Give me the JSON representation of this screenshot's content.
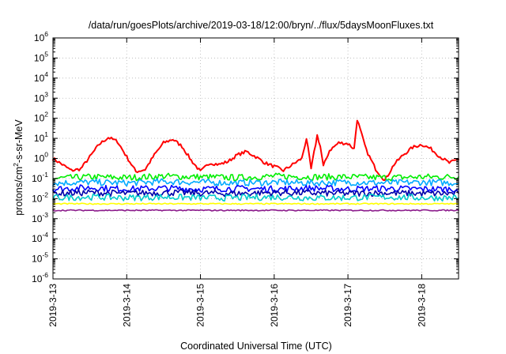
{
  "chart_data": {
    "type": "line",
    "title": "/data/run/goesPlots/archive/2019-03-18/12:00/bryn/../flux/5daysMoonFluxes.txt",
    "xlabel": "Coordinated Universal Time (UTC)",
    "ylabel": {
      "base": "protons/cm",
      "sup": "2",
      "rest": "-s-sr-MeV"
    },
    "y_scale": "log",
    "ylim": [
      1e-06,
      1000000.0
    ],
    "y_ticks": [
      {
        "base": "10",
        "exp": "-6",
        "value": 1e-06
      },
      {
        "base": "10",
        "exp": "-5",
        "value": 1e-05
      },
      {
        "base": "10",
        "exp": "-4",
        "value": 0.0001
      },
      {
        "base": "10",
        "exp": "-3",
        "value": 0.001
      },
      {
        "base": "10",
        "exp": "-2",
        "value": 0.01
      },
      {
        "base": "10",
        "exp": "-1",
        "value": 0.1
      },
      {
        "base": "10",
        "exp": "0",
        "value": 1
      },
      {
        "base": "10",
        "exp": "1",
        "value": 10
      },
      {
        "base": "10",
        "exp": "2",
        "value": 100
      },
      {
        "base": "10",
        "exp": "3",
        "value": 1000
      },
      {
        "base": "10",
        "exp": "4",
        "value": 10000
      },
      {
        "base": "10",
        "exp": "5",
        "value": 100000
      },
      {
        "base": "10",
        "exp": "6",
        "value": 1000000
      }
    ],
    "x_unit": "day",
    "xlim": [
      "2019-03-13T00:00",
      "2019-03-18T12:00"
    ],
    "x_ticks": [
      {
        "label": "2019-3-13",
        "value": "2019-03-13T00:00"
      },
      {
        "label": "2019-3-14",
        "value": "2019-03-14T00:00"
      },
      {
        "label": "2019-3-15",
        "value": "2019-03-15T00:00"
      },
      {
        "label": "2019-3-16",
        "value": "2019-03-16T00:00"
      },
      {
        "label": "2019-3-17",
        "value": "2019-03-17T00:00"
      },
      {
        "label": "2019-3-18",
        "value": "2019-03-18T00:00"
      }
    ],
    "grid": true,
    "series": [
      {
        "color": "#ff0000",
        "x": [
          "2019-03-13T00:00",
          "2019-03-13T03:00",
          "2019-03-13T06:00",
          "2019-03-13T09:00",
          "2019-03-13T12:00",
          "2019-03-13T15:00",
          "2019-03-13T18:00",
          "2019-03-13T21:00",
          "2019-03-14T00:00",
          "2019-03-14T03:00",
          "2019-03-14T06:00",
          "2019-03-14T09:00",
          "2019-03-14T12:00",
          "2019-03-14T15:00",
          "2019-03-14T18:00",
          "2019-03-14T21:00",
          "2019-03-15T00:00",
          "2019-03-15T03:00",
          "2019-03-15T06:00",
          "2019-03-15T09:00",
          "2019-03-15T12:00",
          "2019-03-15T15:00",
          "2019-03-15T18:00",
          "2019-03-15T21:00",
          "2019-03-16T00:00",
          "2019-03-16T03:00",
          "2019-03-16T06:00",
          "2019-03-16T09:00",
          "2019-03-16T10:30",
          "2019-03-16T12:00",
          "2019-03-16T13:00",
          "2019-03-16T14:00",
          "2019-03-16T15:00",
          "2019-03-16T16:00",
          "2019-03-16T18:00",
          "2019-03-16T21:00",
          "2019-03-17T00:00",
          "2019-03-17T02:00",
          "2019-03-17T03:00",
          "2019-03-17T05:00",
          "2019-03-17T06:00",
          "2019-03-17T09:00",
          "2019-03-17T12:00",
          "2019-03-17T15:00",
          "2019-03-17T18:00",
          "2019-03-17T21:00",
          "2019-03-18T00:00",
          "2019-03-18T03:00",
          "2019-03-18T06:00",
          "2019-03-18T09:00",
          "2019-03-18T12:00"
        ],
        "values": [
          1.0,
          0.5,
          0.25,
          0.3,
          1.2,
          5,
          11,
          7,
          1.2,
          0.22,
          0.28,
          1.5,
          6,
          9,
          4,
          0.8,
          0.22,
          0.6,
          0.5,
          0.7,
          1.5,
          2.2,
          1.2,
          0.6,
          0.4,
          0.25,
          0.5,
          1.0,
          10,
          0.3,
          2,
          14,
          4,
          0.4,
          2.5,
          6,
          5.5,
          3,
          90,
          8,
          2.5,
          0.3,
          0.08,
          0.5,
          1.5,
          3.5,
          5,
          3,
          1.2,
          0.6,
          0.9
        ]
      },
      {
        "color": "#00ee00",
        "x": [
          "2019-03-13T00:00",
          "2019-03-13T12:00",
          "2019-03-14T00:00",
          "2019-03-14T12:00",
          "2019-03-15T00:00",
          "2019-03-15T12:00",
          "2019-03-16T00:00",
          "2019-03-16T12:00",
          "2019-03-17T00:00",
          "2019-03-17T12:00",
          "2019-03-18T00:00",
          "2019-03-18T12:00"
        ],
        "values": [
          0.1,
          0.12,
          0.11,
          0.13,
          0.12,
          0.11,
          0.13,
          0.12,
          0.12,
          0.11,
          0.12,
          0.12
        ]
      },
      {
        "color": "#00aaff",
        "x": [
          "2019-03-13T00:00",
          "2019-03-13T12:00",
          "2019-03-14T00:00",
          "2019-03-14T12:00",
          "2019-03-15T00:00",
          "2019-03-15T12:00",
          "2019-03-16T00:00",
          "2019-03-16T12:00",
          "2019-03-17T00:00",
          "2019-03-17T12:00",
          "2019-03-18T00:00",
          "2019-03-18T12:00"
        ],
        "values": [
          0.06,
          0.065,
          0.06,
          0.07,
          0.065,
          0.06,
          0.065,
          0.06,
          0.065,
          0.06,
          0.065,
          0.06
        ]
      },
      {
        "color": "#0000ff",
        "x": [
          "2019-03-13T00:00",
          "2019-03-13T12:00",
          "2019-03-14T00:00",
          "2019-03-14T12:00",
          "2019-03-15T00:00",
          "2019-03-15T12:00",
          "2019-03-16T00:00",
          "2019-03-16T12:00",
          "2019-03-17T00:00",
          "2019-03-17T12:00",
          "2019-03-18T00:00",
          "2019-03-18T12:00"
        ],
        "values": [
          0.03,
          0.035,
          0.03,
          0.033,
          0.03,
          0.032,
          0.03,
          0.033,
          0.03,
          0.032,
          0.03,
          0.03
        ]
      },
      {
        "color": "#0000aa",
        "x": [
          "2019-03-13T00:00",
          "2019-03-13T12:00",
          "2019-03-14T00:00",
          "2019-03-14T12:00",
          "2019-03-15T00:00",
          "2019-03-15T12:00",
          "2019-03-16T00:00",
          "2019-03-16T12:00",
          "2019-03-17T00:00",
          "2019-03-17T12:00",
          "2019-03-18T00:00",
          "2019-03-18T12:00"
        ],
        "values": [
          0.018,
          0.02,
          0.018,
          0.02,
          0.019,
          0.018,
          0.02,
          0.019,
          0.018,
          0.019,
          0.018,
          0.018
        ]
      },
      {
        "color": "#00cccc",
        "x": [
          "2019-03-13T00:00",
          "2019-03-13T12:00",
          "2019-03-14T00:00",
          "2019-03-14T12:00",
          "2019-03-15T00:00",
          "2019-03-15T12:00",
          "2019-03-16T00:00",
          "2019-03-16T12:00",
          "2019-03-17T00:00",
          "2019-03-17T12:00",
          "2019-03-18T00:00",
          "2019-03-18T12:00"
        ],
        "values": [
          0.011,
          0.012,
          0.011,
          0.012,
          0.011,
          0.011,
          0.012,
          0.011,
          0.011,
          0.012,
          0.011,
          0.011
        ]
      },
      {
        "color": "#ffff00",
        "x": [
          "2019-03-13T00:00",
          "2019-03-13T12:00",
          "2019-03-14T00:00",
          "2019-03-14T12:00",
          "2019-03-15T00:00",
          "2019-03-15T12:00",
          "2019-03-16T00:00",
          "2019-03-16T12:00",
          "2019-03-17T00:00",
          "2019-03-17T12:00",
          "2019-03-18T00:00",
          "2019-03-18T12:00"
        ],
        "values": [
          0.0055,
          0.0055,
          0.0055,
          0.0055,
          0.0055,
          0.0055,
          0.0055,
          0.0055,
          0.0055,
          0.0055,
          0.0055,
          0.0055
        ]
      },
      {
        "color": "#8b1a8b",
        "x": [
          "2019-03-13T00:00",
          "2019-03-13T12:00",
          "2019-03-14T00:00",
          "2019-03-14T12:00",
          "2019-03-15T00:00",
          "2019-03-15T12:00",
          "2019-03-16T00:00",
          "2019-03-16T12:00",
          "2019-03-17T00:00",
          "2019-03-17T12:00",
          "2019-03-18T00:00",
          "2019-03-18T12:00"
        ],
        "values": [
          0.0026,
          0.0026,
          0.0026,
          0.0026,
          0.0026,
          0.0026,
          0.0026,
          0.0026,
          0.0026,
          0.0026,
          0.0026,
          0.0026
        ]
      }
    ]
  }
}
